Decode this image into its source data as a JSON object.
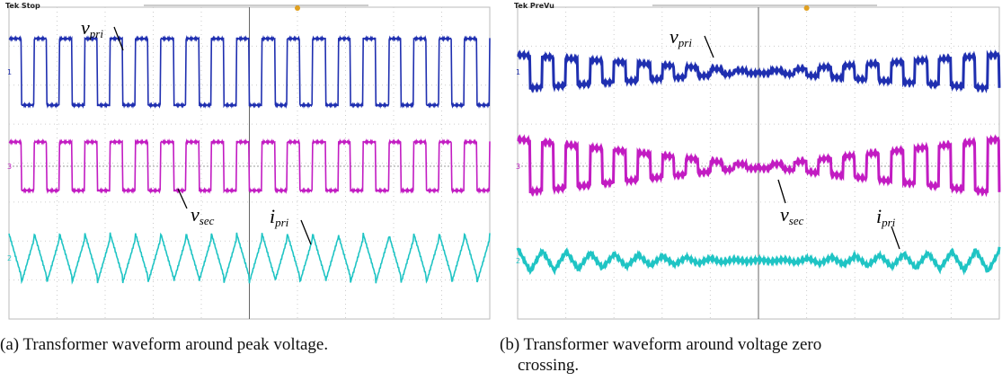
{
  "panels": [
    {
      "scope_status": "Tek Stop",
      "channels": [
        "1",
        "3",
        "2"
      ],
      "labels": [
        {
          "symbol": "v",
          "subscript": "pri"
        },
        {
          "symbol": "v",
          "subscript": "sec"
        },
        {
          "symbol": "i",
          "subscript": "pri"
        }
      ],
      "caption": "(a) Transformer waveform around peak voltage."
    },
    {
      "scope_status": "Tek PreVu",
      "channels": [
        "1",
        "3",
        "2"
      ],
      "labels": [
        {
          "symbol": "v",
          "subscript": "pri"
        },
        {
          "symbol": "v",
          "subscript": "sec"
        },
        {
          "symbol": "i",
          "subscript": "pri"
        }
      ],
      "caption_lines": [
        "(b) Transformer waveform around voltage zero",
        "crossing."
      ]
    }
  ]
}
